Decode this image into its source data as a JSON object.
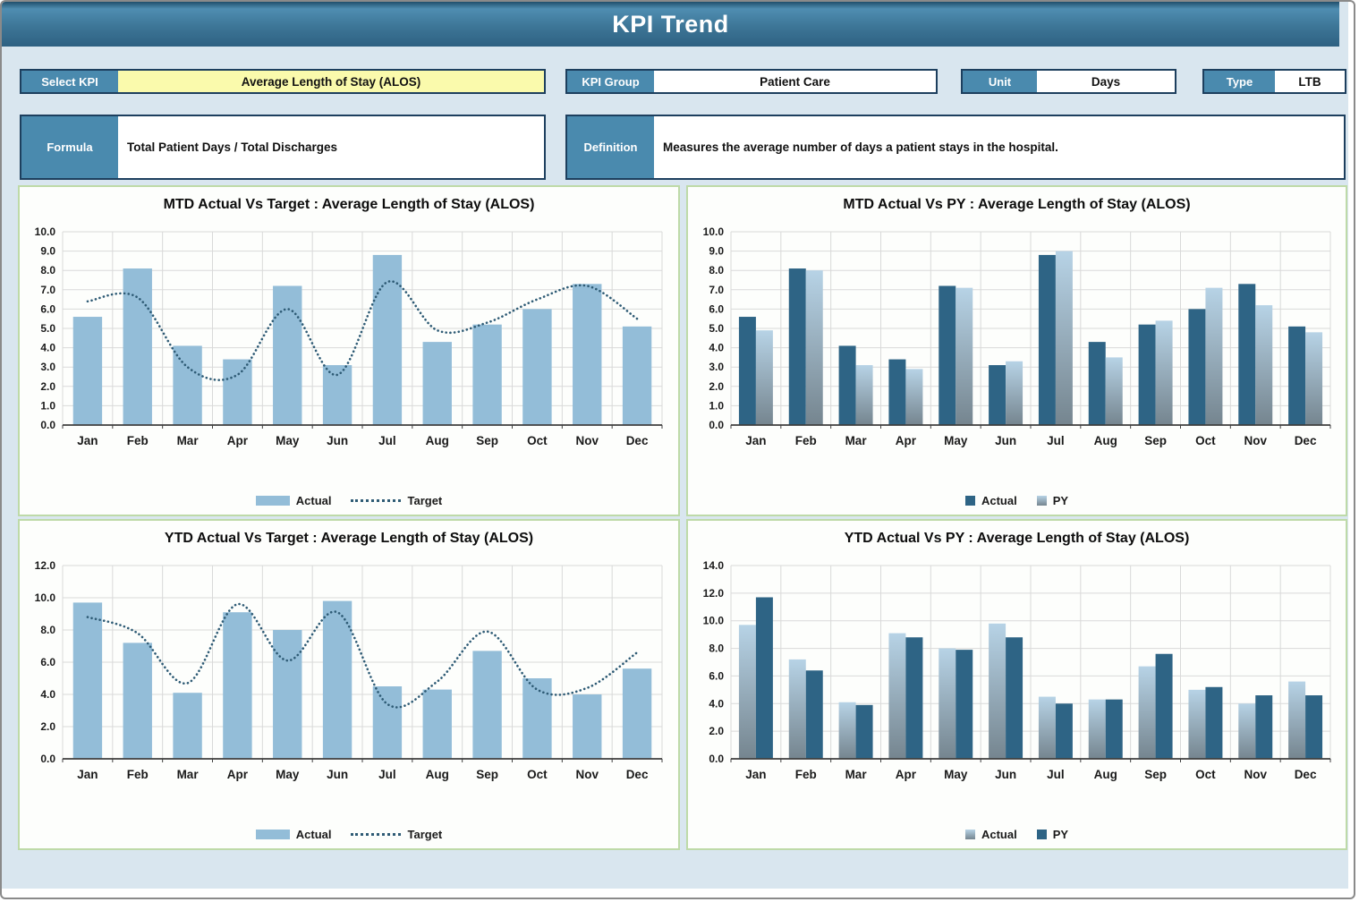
{
  "window": {
    "title": "KPI Trend"
  },
  "fields": {
    "select_kpi": {
      "label": "Select KPI",
      "value": "Average Length of Stay (ALOS)"
    },
    "kpi_group": {
      "label": "KPI Group",
      "value": "Patient Care"
    },
    "unit": {
      "label": "Unit",
      "value": "Days"
    },
    "type": {
      "label": "Type",
      "value": "LTB"
    },
    "formula": {
      "label": "Formula",
      "value": "Total Patient Days / Total Discharges"
    },
    "definition": {
      "label": "Definition",
      "value": "Measures the average number of days a patient stays in the hospital."
    }
  },
  "colors": {
    "page_bg": "#d9e6ef",
    "accent_blue": "#4a8aae",
    "border_navy": "#1d3f5e",
    "select_yellow": "#fafaac",
    "panel_border": "#bedaa8",
    "bar_light": "#93bdd8",
    "bar_dark": "#2e6485",
    "grad_top": "#b7d3e6",
    "grad_bottom": "#75858f",
    "target_line": "#2e5b75",
    "gridline": "#d9d9d9",
    "axis": "#3f3f3f"
  },
  "chart_data": [
    {
      "id": "mtd-target",
      "type": "bar",
      "title": "MTD Actual Vs Target : Average Length of Stay (ALOS)",
      "categories": [
        "Jan",
        "Feb",
        "Mar",
        "Apr",
        "May",
        "Jun",
        "Jul",
        "Aug",
        "Sep",
        "Oct",
        "Nov",
        "Dec"
      ],
      "series": [
        {
          "name": "Actual",
          "style": "light",
          "values": [
            5.6,
            8.1,
            4.1,
            3.4,
            7.2,
            3.1,
            8.8,
            4.3,
            5.2,
            6.0,
            7.3,
            5.1
          ]
        }
      ],
      "target": {
        "name": "Target",
        "values": [
          6.4,
          6.6,
          3.0,
          2.6,
          6.0,
          2.6,
          7.4,
          4.9,
          5.3,
          6.5,
          7.2,
          5.5
        ]
      },
      "ylim": [
        0,
        10
      ],
      "ytick": 1,
      "grid": true,
      "legend_position": "bottom"
    },
    {
      "id": "mtd-py",
      "type": "bar",
      "title": "MTD Actual Vs PY : Average Length of Stay (ALOS)",
      "categories": [
        "Jan",
        "Feb",
        "Mar",
        "Apr",
        "May",
        "Jun",
        "Jul",
        "Aug",
        "Sep",
        "Oct",
        "Nov",
        "Dec"
      ],
      "series": [
        {
          "name": "Actual",
          "style": "dark",
          "values": [
            5.6,
            8.1,
            4.1,
            3.4,
            7.2,
            3.1,
            8.8,
            4.3,
            5.2,
            6.0,
            7.3,
            5.1
          ]
        },
        {
          "name": "PY",
          "style": "gradient",
          "values": [
            4.9,
            8.0,
            3.1,
            2.9,
            7.1,
            3.3,
            9.0,
            3.5,
            5.4,
            7.1,
            6.2,
            4.8
          ]
        }
      ],
      "ylim": [
        0,
        10
      ],
      "ytick": 1,
      "grid": true,
      "legend_position": "bottom"
    },
    {
      "id": "ytd-target",
      "type": "bar",
      "title": "YTD Actual Vs Target : Average Length of Stay (ALOS)",
      "categories": [
        "Jan",
        "Feb",
        "Mar",
        "Apr",
        "May",
        "Jun",
        "Jul",
        "Aug",
        "Sep",
        "Oct",
        "Nov",
        "Dec"
      ],
      "series": [
        {
          "name": "Actual",
          "style": "light",
          "values": [
            9.7,
            7.2,
            4.1,
            9.1,
            8.0,
            9.8,
            4.5,
            4.3,
            6.7,
            5.0,
            4.0,
            5.6
          ]
        }
      ],
      "target": {
        "name": "Target",
        "values": [
          8.8,
          7.8,
          4.7,
          9.6,
          6.1,
          9.1,
          3.4,
          4.8,
          7.9,
          4.3,
          4.4,
          6.6
        ]
      },
      "ylim": [
        0,
        12
      ],
      "ytick": 2,
      "grid": true,
      "legend_position": "bottom"
    },
    {
      "id": "ytd-py",
      "type": "bar",
      "title": "YTD Actual Vs PY : Average Length of Stay (ALOS)",
      "categories": [
        "Jan",
        "Feb",
        "Mar",
        "Apr",
        "May",
        "Jun",
        "Jul",
        "Aug",
        "Sep",
        "Oct",
        "Nov",
        "Dec"
      ],
      "series": [
        {
          "name": "Actual",
          "style": "gradient",
          "values": [
            9.7,
            7.2,
            4.1,
            9.1,
            8.0,
            9.8,
            4.5,
            4.3,
            6.7,
            5.0,
            4.0,
            5.6
          ]
        },
        {
          "name": "PY",
          "style": "dark",
          "values": [
            11.7,
            6.4,
            3.9,
            8.8,
            7.9,
            8.8,
            4.0,
            4.3,
            7.6,
            5.2,
            4.6,
            4.6
          ]
        }
      ],
      "ylim": [
        0,
        14
      ],
      "ytick": 2,
      "grid": true,
      "legend_position": "bottom"
    }
  ]
}
